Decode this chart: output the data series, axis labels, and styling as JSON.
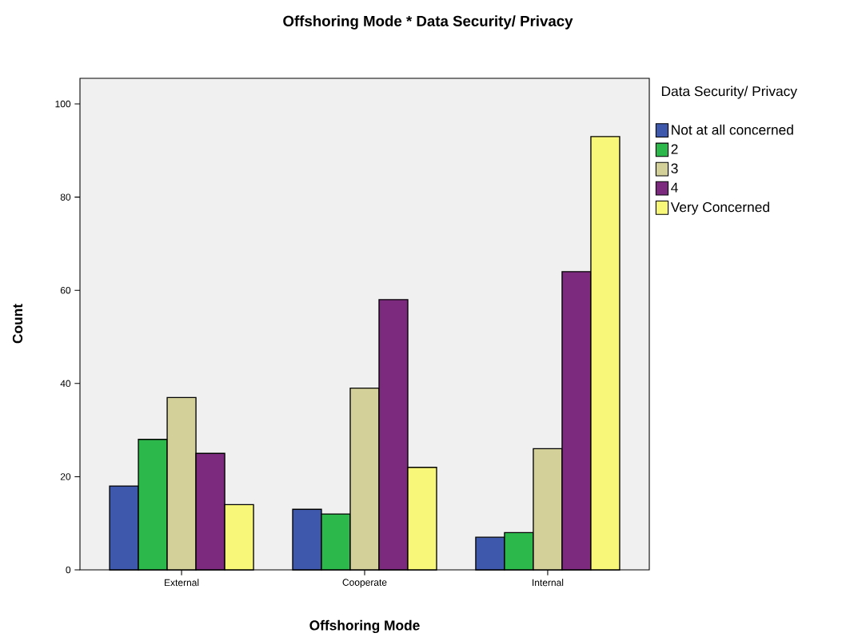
{
  "chart_data": {
    "type": "bar",
    "title": "Offshoring Mode * Data Security/ Privacy",
    "xlabel": "Offshoring Mode",
    "ylabel": "Count",
    "legend_title": "Data Security/ Privacy",
    "categories": [
      "External",
      "Cooperate",
      "Internal"
    ],
    "series": [
      {
        "name": "Not at all concerned",
        "color": "#3e58ac",
        "values": [
          18,
          13,
          7
        ]
      },
      {
        "name": "2",
        "color": "#2db84c",
        "values": [
          28,
          12,
          8
        ]
      },
      {
        "name": "3",
        "color": "#d4d09a",
        "values": [
          37,
          39,
          26
        ]
      },
      {
        "name": "4",
        "color": "#7b2a7e",
        "values": [
          25,
          58,
          64
        ]
      },
      {
        "name": "Very Concerned",
        "color": "#f8f77a",
        "values": [
          14,
          22,
          93
        ]
      }
    ],
    "ylim": [
      0,
      105.5
    ],
    "yticks": [
      0,
      20,
      40,
      60,
      80,
      100
    ],
    "grid": false,
    "legend": "top right"
  }
}
